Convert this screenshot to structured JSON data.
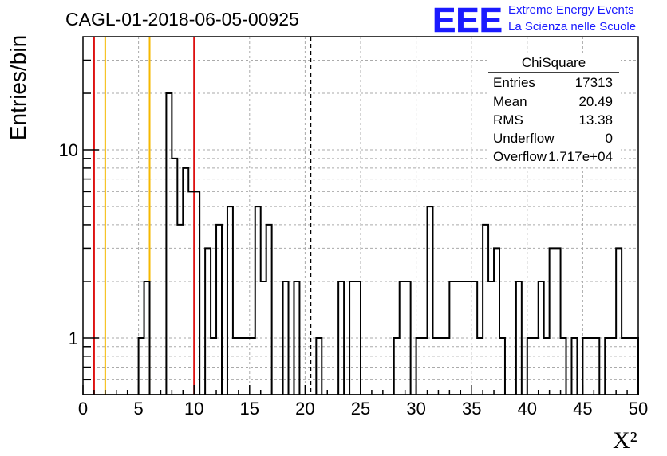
{
  "chart_data": {
    "type": "histogram",
    "title": "CAGL-01-2018-06-05-00925",
    "xlabel": "X²",
    "ylabel": "Entries/bin",
    "xlim": [
      0,
      50
    ],
    "ylim": [
      0.5,
      40
    ],
    "yscale": "log",
    "grid": true,
    "bin_width": 0.5,
    "x_ticks": [
      "0",
      "5",
      "10",
      "15",
      "20",
      "25",
      "30",
      "35",
      "40",
      "45",
      "50"
    ],
    "y_ticks": [
      {
        "value": 1,
        "label": "1"
      },
      {
        "value": 10,
        "label": "10"
      }
    ],
    "bins": [
      [
        5,
        1
      ],
      [
        5.5,
        2
      ],
      [
        7.5,
        20
      ],
      [
        8,
        9
      ],
      [
        8.5,
        4
      ],
      [
        9,
        8
      ],
      [
        9.5,
        6
      ],
      [
        10,
        6
      ],
      [
        11,
        3
      ],
      [
        11.5,
        1
      ],
      [
        12,
        4
      ],
      [
        13,
        5
      ],
      [
        13.5,
        1
      ],
      [
        14,
        1
      ],
      [
        14.5,
        1
      ],
      [
        15,
        1
      ],
      [
        15.5,
        5
      ],
      [
        16,
        2
      ],
      [
        16.5,
        4
      ],
      [
        18,
        2
      ],
      [
        19,
        2
      ],
      [
        21,
        1
      ],
      [
        23,
        2
      ],
      [
        24,
        2
      ],
      [
        24.5,
        2
      ],
      [
        28,
        1
      ],
      [
        28.5,
        2
      ],
      [
        29,
        2
      ],
      [
        30,
        1
      ],
      [
        30.5,
        1
      ],
      [
        31,
        5
      ],
      [
        31.5,
        1
      ],
      [
        32,
        1
      ],
      [
        32.5,
        1
      ],
      [
        33,
        2
      ],
      [
        33.5,
        2
      ],
      [
        34,
        2
      ],
      [
        34.5,
        2
      ],
      [
        35,
        2
      ],
      [
        35.5,
        1
      ],
      [
        36,
        4
      ],
      [
        36.5,
        2
      ],
      [
        37,
        3
      ],
      [
        37.5,
        1
      ],
      [
        39,
        2
      ],
      [
        40,
        1
      ],
      [
        40.5,
        1
      ],
      [
        41,
        2
      ],
      [
        41.5,
        1
      ],
      [
        42,
        3
      ],
      [
        42.5,
        3
      ],
      [
        43,
        1
      ],
      [
        44,
        1
      ],
      [
        45,
        1
      ],
      [
        45.5,
        1
      ],
      [
        46,
        1
      ],
      [
        47,
        1
      ],
      [
        47.5,
        1
      ],
      [
        48,
        3
      ],
      [
        48.5,
        1
      ],
      [
        49,
        1
      ],
      [
        49.5,
        1
      ]
    ],
    "vertical_lines": [
      {
        "x": 1,
        "color": "#dd1111",
        "style": "solid"
      },
      {
        "x": 2,
        "color": "#f5b800",
        "style": "solid"
      },
      {
        "x": 6,
        "color": "#f5b800",
        "style": "solid"
      },
      {
        "x": 10,
        "color": "#dd1111",
        "style": "solid"
      },
      {
        "x": 20.49,
        "color": "#000000",
        "style": "dashed"
      }
    ],
    "stats_box": {
      "title": "ChiSquare",
      "rows": [
        {
          "label": "Entries",
          "value": "17313"
        },
        {
          "label": "Mean",
          "value": "20.49"
        },
        {
          "label": "RMS",
          "value": "13.38"
        },
        {
          "label": "Underflow",
          "value": "0"
        },
        {
          "label": "Overflow",
          "value": "1.717e+04"
        }
      ]
    }
  },
  "branding": {
    "logo_text": "EEE",
    "line1": "Extreme Energy Events",
    "line2": "La Scienza nelle Scuole",
    "color": "#1a1aff"
  }
}
